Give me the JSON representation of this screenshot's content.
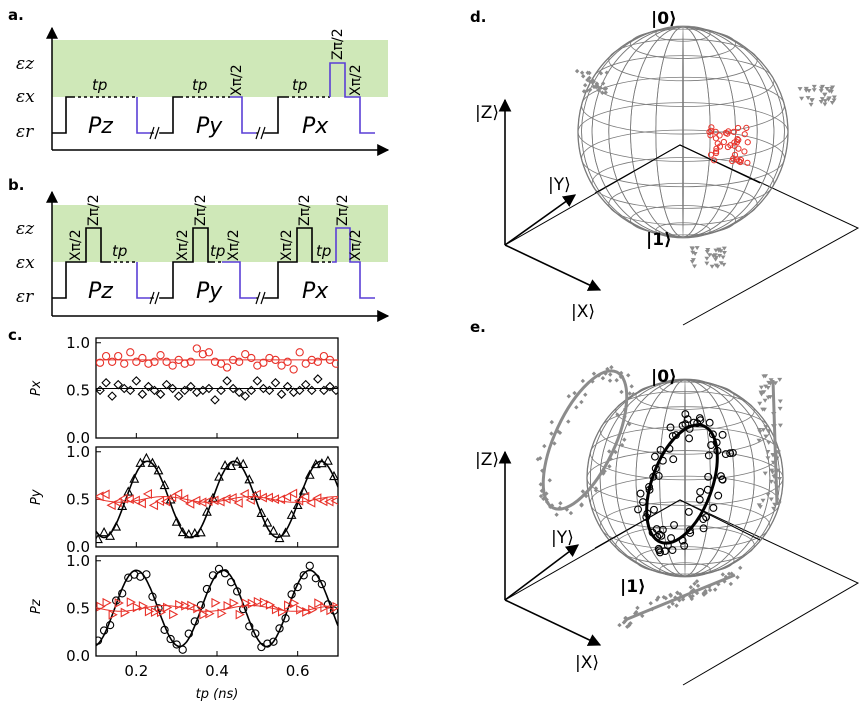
{
  "labels": {
    "panel_a": "a.",
    "panel_b": "b.",
    "panel_c": "c.",
    "panel_d": "d.",
    "panel_e": "e."
  },
  "levels": {
    "ez": "εz",
    "ex": "εx",
    "er": "εr"
  },
  "pulses_a": {
    "pz": "Pz",
    "py": "Py",
    "px": "Px",
    "tp": "tp",
    "x_gate": "Xπ/2",
    "z_gate": "Zπ/2"
  },
  "pulses_b": {
    "pz": "Pz",
    "py": "Py",
    "px": "Px",
    "tp": "tp",
    "x_gate": "Xπ/2",
    "z_gate": "Zπ/2"
  },
  "colors": {
    "green_band": "#cfe8b8",
    "pulse": "#000000",
    "gate_line": "#5a3fd6",
    "red_data": "#e8322a",
    "black_data": "#000000",
    "gray_proj": "#8c8c8c"
  },
  "chart_data": [
    {
      "type": "scatter",
      "ylabel": "Px",
      "xlim": [
        0.1,
        0.7
      ],
      "ylim": [
        0.0,
        1.05
      ],
      "yticks": [
        "0.0",
        "0.5",
        "1.0"
      ],
      "series": [
        {
          "marker": "circle",
          "color": "red",
          "fit": 0.82,
          "x": [
            0.11,
            0.125,
            0.14,
            0.155,
            0.17,
            0.185,
            0.2,
            0.215,
            0.23,
            0.245,
            0.26,
            0.275,
            0.29,
            0.305,
            0.32,
            0.335,
            0.35,
            0.365,
            0.38,
            0.395,
            0.41,
            0.425,
            0.44,
            0.455,
            0.47,
            0.485,
            0.5,
            0.515,
            0.53,
            0.545,
            0.56,
            0.575,
            0.59,
            0.605,
            0.62,
            0.635,
            0.65,
            0.665,
            0.68,
            0.695
          ],
          "y": [
            0.79,
            0.86,
            0.8,
            0.86,
            0.78,
            0.9,
            0.8,
            0.84,
            0.78,
            0.8,
            0.87,
            0.8,
            0.76,
            0.82,
            0.78,
            0.8,
            0.94,
            0.88,
            0.9,
            0.8,
            0.78,
            0.74,
            0.82,
            0.8,
            0.88,
            0.84,
            0.76,
            0.79,
            0.84,
            0.82,
            0.76,
            0.8,
            0.72,
            0.9,
            0.78,
            0.82,
            0.8,
            0.86,
            0.82,
            0.78
          ]
        },
        {
          "marker": "diamond",
          "color": "black",
          "fit": 0.52,
          "x": [
            0.11,
            0.125,
            0.14,
            0.155,
            0.17,
            0.185,
            0.2,
            0.215,
            0.23,
            0.245,
            0.26,
            0.275,
            0.29,
            0.305,
            0.32,
            0.335,
            0.35,
            0.365,
            0.38,
            0.395,
            0.41,
            0.425,
            0.44,
            0.455,
            0.47,
            0.485,
            0.5,
            0.515,
            0.53,
            0.545,
            0.56,
            0.575,
            0.59,
            0.605,
            0.62,
            0.635,
            0.65,
            0.665,
            0.68,
            0.695
          ],
          "y": [
            0.5,
            0.58,
            0.44,
            0.56,
            0.52,
            0.5,
            0.6,
            0.46,
            0.54,
            0.5,
            0.46,
            0.56,
            0.52,
            0.44,
            0.5,
            0.54,
            0.48,
            0.5,
            0.52,
            0.4,
            0.5,
            0.6,
            0.52,
            0.48,
            0.44,
            0.5,
            0.6,
            0.52,
            0.5,
            0.58,
            0.46,
            0.54,
            0.48,
            0.5,
            0.56,
            0.5,
            0.62,
            0.5,
            0.54,
            0.5
          ]
        }
      ]
    },
    {
      "type": "scatter",
      "ylabel": "Py",
      "xlim": [
        0.1,
        0.7
      ],
      "ylim": [
        0.0,
        1.05
      ],
      "yticks": [
        "0.0",
        "0.5",
        "1.0"
      ],
      "series": [
        {
          "marker": "triangle-up",
          "color": "black",
          "fit_period": 0.215,
          "fit_phase": 0.12
        },
        {
          "marker": "triangle-left",
          "color": "red",
          "fit": 0.5
        }
      ]
    },
    {
      "type": "scatter",
      "ylabel": "Pz",
      "xlabel": "tp (ns)",
      "xlim": [
        0.1,
        0.7
      ],
      "ylim": [
        0.0,
        1.05
      ],
      "yticks": [
        "0.0",
        "0.5",
        "1.0"
      ],
      "xticks": [
        "0.2",
        "0.4",
        "0.6"
      ],
      "series": [
        {
          "marker": "circle",
          "color": "black",
          "fit_period": 0.215,
          "fit_phase": 0.2
        },
        {
          "marker": "triangle-right",
          "color": "red",
          "fit": 0.5
        }
      ]
    }
  ],
  "bloch_d": {
    "ket0": "|0⟩",
    "ket1": "|1⟩",
    "axis_z": "|Z⟩",
    "axis_y": "|Y⟩",
    "axis_x": "|X⟩"
  },
  "bloch_e": {
    "ket0": "|0⟩",
    "ket1": "|1⟩",
    "axis_z": "|Z⟩",
    "axis_y": "|Y⟩",
    "axis_x": "|X⟩"
  }
}
